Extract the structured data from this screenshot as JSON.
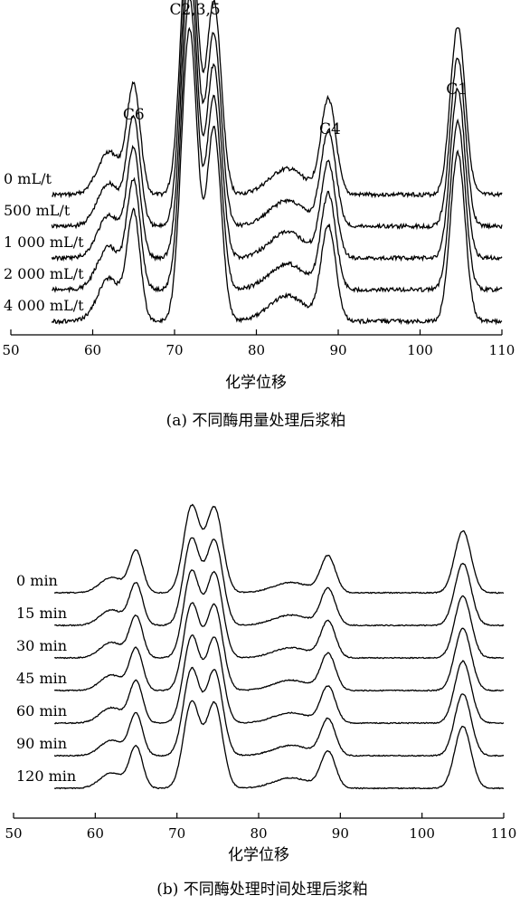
{
  "chart_data": [
    {
      "type": "line",
      "caption": "(a) 不同酶用量处理后浆粕",
      "xlabel": "化学位移",
      "xlim": [
        50,
        110
      ],
      "x_ticks": [
        "50",
        "60",
        "70",
        "80",
        "90",
        "100",
        "110"
      ],
      "grid": false,
      "peak_labels": [
        {
          "text": "C6",
          "x": 65
        },
        {
          "text": "C2,3,5",
          "x": 72.5
        },
        {
          "text": "C4",
          "x": 89
        },
        {
          "text": "C1",
          "x": 104.5
        }
      ],
      "series": [
        {
          "name": "0 mL/t"
        },
        {
          "name": "500 mL/t"
        },
        {
          "name": "1 000 mL/t"
        },
        {
          "name": "2 000 mL/t"
        },
        {
          "name": "4 000 mL/t"
        }
      ],
      "peaks": [
        {
          "x": 62.0,
          "height": 0.25,
          "width": 1.4
        },
        {
          "x": 65.0,
          "height": 0.62,
          "width": 0.8
        },
        {
          "x": 71.5,
          "height": 1.18,
          "width": 0.9
        },
        {
          "x": 72.3,
          "height": 0.7,
          "width": 0.8
        },
        {
          "x": 74.8,
          "height": 1.12,
          "width": 0.9
        },
        {
          "x": 83.8,
          "height": 0.15,
          "width": 2.2
        },
        {
          "x": 88.8,
          "height": 0.55,
          "width": 0.9
        },
        {
          "x": 104.6,
          "height": 0.98,
          "width": 0.9
        }
      ]
    },
    {
      "type": "line",
      "caption": "(b) 不同酶处理时间处理后浆粕",
      "xlabel": "化学位移",
      "xlim": [
        50,
        110
      ],
      "x_ticks": [
        "50",
        "60",
        "70",
        "80",
        "90",
        "100",
        "110"
      ],
      "grid": false,
      "series": [
        {
          "name": "0 min"
        },
        {
          "name": "15 min"
        },
        {
          "name": "30 min"
        },
        {
          "name": "45 min"
        },
        {
          "name": "60 min"
        },
        {
          "name": "90 min"
        },
        {
          "name": "120 min"
        }
      ],
      "peaks": [
        {
          "x": 62.0,
          "height": 0.18,
          "width": 1.4
        },
        {
          "x": 65.0,
          "height": 0.48,
          "width": 0.8
        },
        {
          "x": 71.8,
          "height": 1.0,
          "width": 1.0
        },
        {
          "x": 74.6,
          "height": 0.98,
          "width": 1.0
        },
        {
          "x": 84.0,
          "height": 0.12,
          "width": 2.2
        },
        {
          "x": 88.5,
          "height": 0.42,
          "width": 0.9
        },
        {
          "x": 105.0,
          "height": 0.72,
          "width": 1.0
        }
      ]
    }
  ]
}
